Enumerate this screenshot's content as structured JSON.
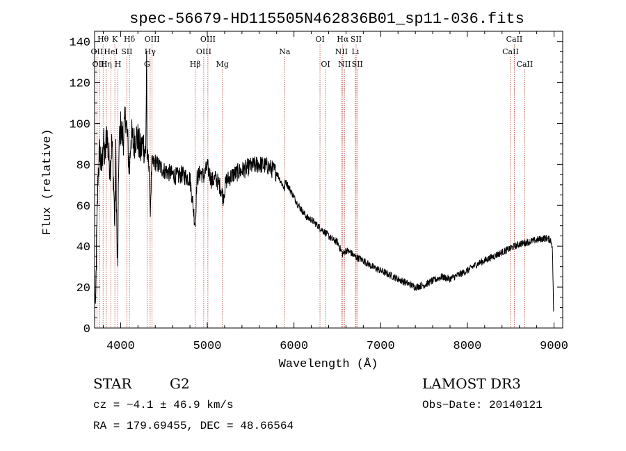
{
  "chart_data": {
    "type": "line",
    "title": "spec-56679-HD115505N462836B01_sp11-036.fits",
    "xlabel": "Wavelength (Å)",
    "ylabel": "Flux (relative)",
    "xlim": [
      3700,
      9100
    ],
    "ylim": [
      0,
      145
    ],
    "x_ticks": [
      4000,
      5000,
      6000,
      7000,
      8000,
      9000
    ],
    "y_ticks": [
      0,
      20,
      40,
      60,
      80,
      100,
      120,
      140
    ],
    "grid": false,
    "series": [
      {
        "name": "flux",
        "anchors": [
          [
            3700,
            30
          ],
          [
            3710,
            3
          ],
          [
            3720,
            35
          ],
          [
            3740,
            75
          ],
          [
            3760,
            88
          ],
          [
            3780,
            76
          ],
          [
            3800,
            92
          ],
          [
            3820,
            82
          ],
          [
            3840,
            97
          ],
          [
            3860,
            84
          ],
          [
            3880,
            79
          ],
          [
            3900,
            91
          ],
          [
            3920,
            70
          ],
          [
            3933,
            50
          ],
          [
            3945,
            85
          ],
          [
            3960,
            36
          ],
          [
            3968,
            34
          ],
          [
            3980,
            88
          ],
          [
            4000,
            98
          ],
          [
            4030,
            92
          ],
          [
            4060,
            104
          ],
          [
            4080,
            92
          ],
          [
            4102,
            76
          ],
          [
            4120,
            95
          ],
          [
            4150,
            90
          ],
          [
            4180,
            94
          ],
          [
            4200,
            92
          ],
          [
            4230,
            86
          ],
          [
            4260,
            91
          ],
          [
            4290,
            84
          ],
          [
            4300,
            136
          ],
          [
            4305,
            84
          ],
          [
            4330,
            80
          ],
          [
            4340,
            55
          ],
          [
            4360,
            80
          ],
          [
            4400,
            81
          ],
          [
            4450,
            79
          ],
          [
            4500,
            77
          ],
          [
            4550,
            76
          ],
          [
            4600,
            75
          ],
          [
            4650,
            74
          ],
          [
            4700,
            75
          ],
          [
            4750,
            74
          ],
          [
            4800,
            73
          ],
          [
            4861,
            50
          ],
          [
            4880,
            73
          ],
          [
            4920,
            76
          ],
          [
            4960,
            74
          ],
          [
            5000,
            79
          ],
          [
            5050,
            72
          ],
          [
            5100,
            73
          ],
          [
            5150,
            69
          ],
          [
            5183,
            64
          ],
          [
            5220,
            72
          ],
          [
            5300,
            75
          ],
          [
            5400,
            77
          ],
          [
            5500,
            79
          ],
          [
            5600,
            80
          ],
          [
            5700,
            79
          ],
          [
            5800,
            76
          ],
          [
            5890,
            68
          ],
          [
            5900,
            72
          ],
          [
            5950,
            68
          ],
          [
            6000,
            64
          ],
          [
            6050,
            60
          ],
          [
            6100,
            57
          ],
          [
            6150,
            54
          ],
          [
            6200,
            53
          ],
          [
            6250,
            51
          ],
          [
            6300,
            49
          ],
          [
            6350,
            47
          ],
          [
            6400,
            45
          ],
          [
            6450,
            43
          ],
          [
            6500,
            42
          ],
          [
            6563,
            36
          ],
          [
            6600,
            38
          ],
          [
            6650,
            37
          ],
          [
            6700,
            35
          ],
          [
            6800,
            33
          ],
          [
            6900,
            30
          ],
          [
            7000,
            28
          ],
          [
            7100,
            26
          ],
          [
            7200,
            24
          ],
          [
            7300,
            22
          ],
          [
            7400,
            20
          ],
          [
            7500,
            21
          ],
          [
            7600,
            23
          ],
          [
            7700,
            25
          ],
          [
            7800,
            24
          ],
          [
            7900,
            26
          ],
          [
            8000,
            28
          ],
          [
            8100,
            31
          ],
          [
            8200,
            33
          ],
          [
            8300,
            35
          ],
          [
            8400,
            37
          ],
          [
            8500,
            39
          ],
          [
            8600,
            41
          ],
          [
            8700,
            42
          ],
          [
            8800,
            43
          ],
          [
            8900,
            44
          ],
          [
            8960,
            43
          ],
          [
            8980,
            40
          ],
          [
            8990,
            20
          ],
          [
            8995,
            8
          ]
        ]
      }
    ],
    "reference_lines": [
      {
        "label": "Hθ",
        "x": 3798,
        "row": 0
      },
      {
        "label": "K",
        "x": 3934,
        "row": 0
      },
      {
        "label": "Hδ",
        "x": 4102,
        "row": 0
      },
      {
        "label": "OIII",
        "x": 4363,
        "row": 0
      },
      {
        "label": "OIII",
        "x": 5007,
        "row": 0
      },
      {
        "label": "OI",
        "x": 6300,
        "row": 0
      },
      {
        "label": "Hα",
        "x": 6563,
        "row": 0
      },
      {
        "label": "SII",
        "x": 6717,
        "row": 0
      },
      {
        "label": "CaII",
        "x": 8542,
        "row": 0
      },
      {
        "label": "OII",
        "x": 3727,
        "row": 1
      },
      {
        "label": "HeI",
        "x": 3889,
        "row": 1
      },
      {
        "label": "SII",
        "x": 4072,
        "row": 1
      },
      {
        "label": "Hγ",
        "x": 4341,
        "row": 1
      },
      {
        "label": "OIII",
        "x": 4959,
        "row": 1
      },
      {
        "label": "Na",
        "x": 5893,
        "row": 1
      },
      {
        "label": "NII",
        "x": 6548,
        "row": 1
      },
      {
        "label": "Li",
        "x": 6708,
        "row": 1
      },
      {
        "label": "CaII",
        "x": 8498,
        "row": 1
      },
      {
        "label": "OIII",
        "x": 3760,
        "row": 2
      },
      {
        "label": "Hη",
        "x": 3835,
        "row": 2
      },
      {
        "label": "H",
        "x": 3969,
        "row": 2
      },
      {
        "label": "G",
        "x": 4305,
        "row": 2
      },
      {
        "label": "Hβ",
        "x": 4861,
        "row": 2
      },
      {
        "label": "Mg",
        "x": 5175,
        "row": 2
      },
      {
        "label": "OI",
        "x": 6364,
        "row": 2
      },
      {
        "label": "NII",
        "x": 6583,
        "row": 2
      },
      {
        "label": "SII",
        "x": 6731,
        "row": 2
      },
      {
        "label": "CaII",
        "x": 8662,
        "row": 2
      }
    ]
  },
  "footer": {
    "object_class": "STAR",
    "subclass": "G2",
    "survey": "LAMOST DR3",
    "cz": "cz = −4.1 ± 46.9 km/s",
    "obs_date": "Obs−Date: 20140121",
    "coords": "RA = 179.69455, DEC =  48.66564"
  }
}
